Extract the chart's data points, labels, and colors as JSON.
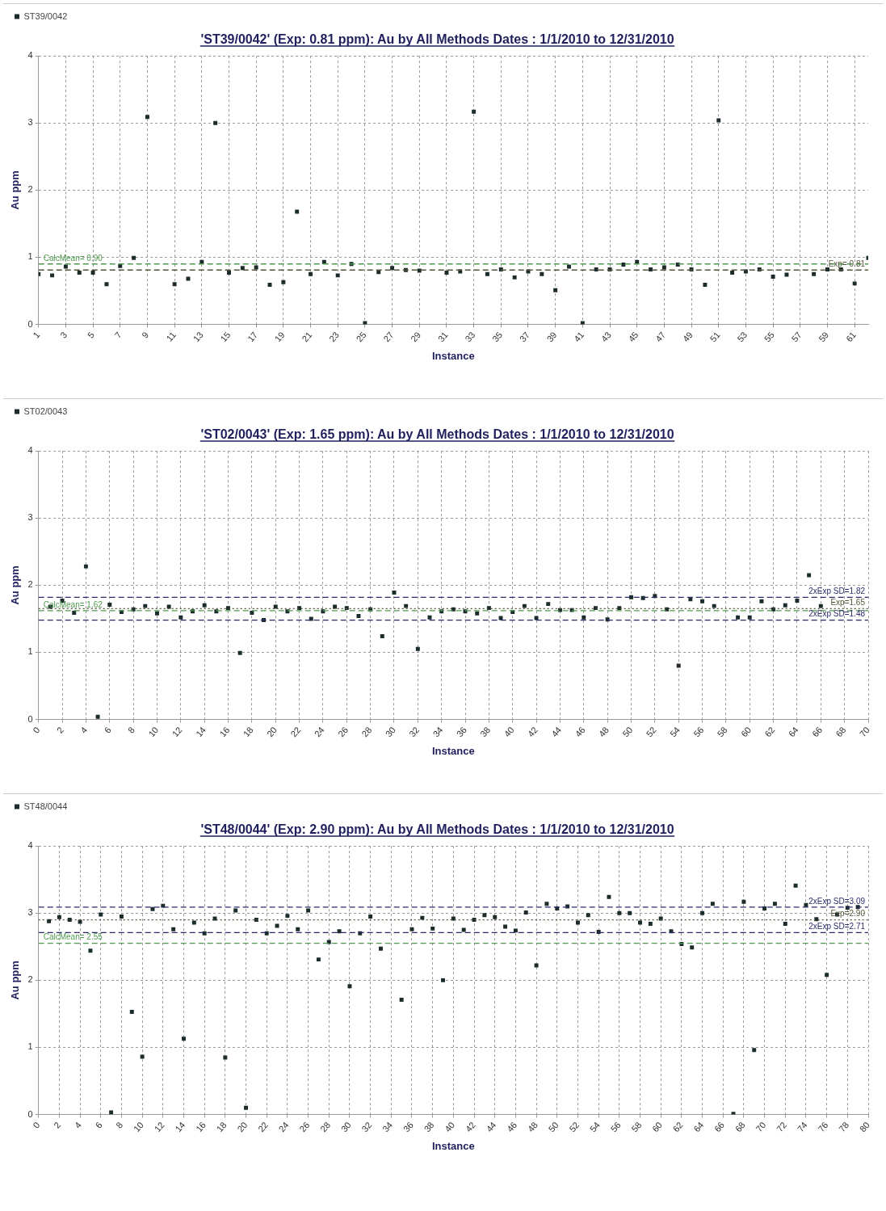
{
  "chart_data": [
    {
      "type": "scatter",
      "title": "'ST39/0042' (Exp: 0.81 ppm): Au by All Methods Dates : 1/1/2010 to 12/31/2010",
      "xlabel": "Instance",
      "ylabel": "Au ppm",
      "legend": "top left",
      "marker": "square",
      "grid": true,
      "series": [
        {
          "name": "ST39/0042",
          "color": "#1c2b2b",
          "x": [
            1,
            2,
            3,
            4,
            5,
            6,
            7,
            8,
            9,
            10,
            11,
            12,
            13,
            14,
            15,
            16,
            17,
            18,
            19,
            20,
            21,
            22,
            23,
            24,
            25,
            26,
            27,
            28,
            29,
            30,
            31,
            32,
            33,
            34,
            35,
            36,
            37,
            38,
            39,
            40,
            41,
            42,
            43,
            44,
            45,
            46,
            47,
            48,
            49,
            50,
            51,
            52,
            53,
            54,
            55,
            56,
            57,
            58,
            59,
            60,
            61,
            62
          ],
          "values": [
            0.75,
            0.73,
            0.86,
            0.77,
            0.77,
            0.6,
            0.87,
            0.99,
            3.09,
            null,
            0.6,
            0.68,
            0.93,
            3.0,
            0.77,
            0.84,
            0.85,
            0.59,
            0.63,
            1.68,
            0.75,
            0.93,
            0.73,
            0.9,
            0.02,
            0.78,
            0.84,
            0.81,
            0.8,
            null,
            0.77,
            0.79,
            3.17,
            0.75,
            0.82,
            0.7,
            0.79,
            0.75,
            0.51,
            0.86,
            0.02,
            0.82,
            0.82,
            0.89,
            0.93,
            0.82,
            0.85,
            0.89,
            0.82,
            0.59,
            3.04,
            0.77,
            0.79,
            0.82,
            0.71,
            0.74,
            null,
            0.75,
            0.82,
            0.82,
            0.61,
            0.99
          ]
        }
      ],
      "xlim": [
        1,
        62
      ],
      "xticks": [
        1,
        3,
        5,
        7,
        9,
        11,
        13,
        15,
        17,
        19,
        21,
        23,
        25,
        27,
        29,
        31,
        33,
        35,
        37,
        39,
        41,
        43,
        45,
        47,
        49,
        51,
        53,
        55,
        57,
        59,
        61
      ],
      "ylim": [
        0,
        4
      ],
      "yticks": [
        0,
        1,
        2,
        3,
        4
      ],
      "ref_lines": [
        {
          "axis": "y",
          "value": 0.9,
          "label": "CalcMean= 0.90",
          "color": "#4e9a4e",
          "line_style": "dashed"
        },
        {
          "axis": "y",
          "value": 0.81,
          "label": "Exp= 0.81",
          "color": "#55553a",
          "line_style": "dashed"
        }
      ]
    },
    {
      "type": "scatter",
      "title": "'ST02/0043' (Exp: 1.65 ppm): Au by All Methods Dates : 1/1/2010 to 12/31/2010",
      "xlabel": "Instance",
      "ylabel": "Au ppm",
      "legend": "top left",
      "marker": "square",
      "grid": true,
      "series": [
        {
          "name": "ST02/0043",
          "color": "#1c2b2b",
          "x": [
            1,
            2,
            3,
            4,
            5,
            6,
            7,
            8,
            9,
            10,
            11,
            12,
            13,
            14,
            15,
            16,
            17,
            18,
            19,
            20,
            21,
            22,
            23,
            24,
            25,
            26,
            27,
            28,
            29,
            30,
            31,
            32,
            33,
            34,
            35,
            36,
            37,
            38,
            39,
            40,
            41,
            42,
            43,
            44,
            45,
            46,
            47,
            48,
            49,
            50,
            51,
            52,
            53,
            54,
            55,
            56,
            57,
            58,
            59,
            60,
            61,
            62,
            63,
            64,
            65,
            66
          ],
          "values": [
            1.68,
            1.77,
            1.59,
            2.28,
            0.04,
            1.71,
            1.6,
            1.64,
            1.69,
            1.58,
            1.68,
            1.52,
            1.61,
            1.7,
            1.61,
            1.66,
            0.99,
            1.59,
            1.48,
            1.68,
            1.61,
            1.66,
            1.5,
            1.61,
            1.68,
            1.66,
            1.54,
            1.64,
            1.24,
            1.89,
            1.69,
            1.05,
            1.52,
            1.61,
            1.64,
            1.61,
            1.58,
            1.66,
            1.51,
            1.6,
            1.69,
            1.51,
            1.72,
            1.63,
            1.63,
            1.52,
            1.66,
            1.49,
            1.66,
            1.82,
            1.81,
            1.84,
            1.64,
            0.8,
            1.79,
            1.76,
            1.69,
            null,
            1.52,
            1.52,
            1.76,
            1.64,
            1.7,
            1.77,
            2.15,
            1.69
          ]
        }
      ],
      "xlim": [
        0,
        70
      ],
      "xticks": [
        0,
        2,
        4,
        6,
        8,
        10,
        12,
        14,
        16,
        18,
        20,
        22,
        24,
        26,
        28,
        30,
        32,
        34,
        36,
        38,
        40,
        42,
        44,
        46,
        48,
        50,
        52,
        54,
        56,
        58,
        60,
        62,
        64,
        66,
        68,
        70
      ],
      "ylim": [
        0,
        4
      ],
      "yticks": [
        0,
        1,
        2,
        3,
        4
      ],
      "ref_lines": [
        {
          "axis": "y",
          "value": 1.62,
          "label": "CalcMean= 1.62",
          "color": "#4e9a4e",
          "line_style": "dashed"
        },
        {
          "axis": "y",
          "value": 1.82,
          "label": "2xExp SD=1.82",
          "color": "#2b2b6b",
          "line_style": "dashed"
        },
        {
          "axis": "y",
          "value": 1.65,
          "label": "Exp=1.65",
          "color": "#55553a",
          "line_style": "dotted"
        },
        {
          "axis": "y",
          "value": 1.48,
          "label": "2xExp SD=1.48",
          "color": "#2b2b6b",
          "line_style": "dashed"
        }
      ]
    },
    {
      "type": "scatter",
      "title": "'ST48/0044' (Exp: 2.90 ppm): Au by All Methods Dates : 1/1/2010 to 12/31/2010",
      "xlabel": "Instance",
      "ylabel": "Au ppm",
      "legend": "top left",
      "marker": "square",
      "grid": true,
      "series": [
        {
          "name": "ST48/0044",
          "color": "#1c2b2b",
          "x": [
            1,
            2,
            3,
            4,
            5,
            6,
            7,
            8,
            9,
            10,
            11,
            12,
            13,
            14,
            15,
            16,
            17,
            18,
            19,
            20,
            21,
            22,
            23,
            24,
            25,
            26,
            27,
            28,
            29,
            30,
            31,
            32,
            33,
            34,
            35,
            36,
            37,
            38,
            39,
            40,
            41,
            42,
            43,
            44,
            45,
            46,
            47,
            48,
            49,
            50,
            51,
            52,
            53,
            54,
            55,
            56,
            57,
            58,
            59,
            60,
            61,
            62,
            63,
            64,
            65,
            66,
            67,
            68,
            69,
            70,
            71,
            72,
            73,
            74,
            75,
            76,
            77,
            78,
            79
          ],
          "values": [
            2.88,
            2.94,
            2.9,
            2.87,
            2.44,
            2.98,
            0.03,
            2.95,
            1.53,
            0.86,
            3.06,
            3.11,
            2.76,
            1.13,
            2.86,
            2.7,
            2.92,
            0.85,
            3.04,
            0.1,
            2.9,
            2.7,
            2.81,
            2.96,
            2.76,
            3.04,
            2.31,
            2.57,
            2.73,
            1.91,
            2.7,
            2.95,
            2.47,
            null,
            1.71,
            2.76,
            2.93,
            2.77,
            2.0,
            2.92,
            2.75,
            2.9,
            2.97,
            2.94,
            2.8,
            2.74,
            3.01,
            2.22,
            3.14,
            3.07,
            3.1,
            2.86,
            2.97,
            2.72,
            3.24,
            3.0,
            3.0,
            2.86,
            2.84,
            2.92,
            2.73,
            2.54,
            2.49,
            3.0,
            3.14,
            null,
            0.01,
            3.17,
            0.96,
            3.07,
            3.14,
            2.84,
            3.41,
            3.12,
            2.91,
            2.08,
            2.98,
            3.08,
            3.09
          ]
        }
      ],
      "xlim": [
        0,
        80
      ],
      "xticks": [
        0,
        2,
        4,
        6,
        8,
        10,
        12,
        14,
        16,
        18,
        20,
        22,
        24,
        26,
        28,
        30,
        32,
        34,
        36,
        38,
        40,
        42,
        44,
        46,
        48,
        50,
        52,
        54,
        56,
        58,
        60,
        62,
        64,
        66,
        68,
        70,
        72,
        74,
        76,
        78,
        80
      ],
      "ylim": [
        0,
        4
      ],
      "yticks": [
        0,
        1,
        2,
        3,
        4
      ],
      "ref_lines": [
        {
          "axis": "y",
          "value": 2.55,
          "label": "CalcMean= 2.55",
          "color": "#4e9a4e",
          "line_style": "dashed"
        },
        {
          "axis": "y",
          "value": 3.09,
          "label": "2xExp SD=3.09",
          "color": "#2b2b6b",
          "line_style": "dashed"
        },
        {
          "axis": "y",
          "value": 2.9,
          "label": "Exp=2.90",
          "color": "#55553a",
          "line_style": "dotted"
        },
        {
          "axis": "y",
          "value": 2.71,
          "label": "2xExp SD=2.71",
          "color": "#2b2b6b",
          "line_style": "dashed"
        }
      ]
    }
  ]
}
